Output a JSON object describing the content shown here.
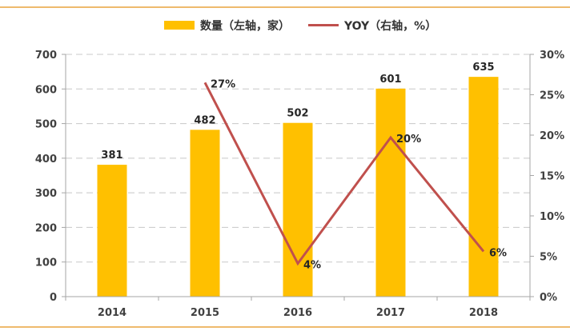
{
  "chart_data": {
    "type": "bar",
    "categories": [
      "2014",
      "2015",
      "2016",
      "2017",
      "2018"
    ],
    "series": [
      {
        "name": "数量（左轴，家）",
        "type": "bar",
        "axis": "left",
        "values": [
          381,
          482,
          502,
          601,
          635
        ],
        "labels": [
          "381",
          "482",
          "502",
          "601",
          "635"
        ],
        "color": "#FFC000"
      },
      {
        "name": "YOY（右轴，%）",
        "type": "line",
        "axis": "right",
        "values": [
          null,
          26.5,
          4.1,
          19.7,
          5.6
        ],
        "labels": [
          "",
          "27%",
          "4%",
          "20%",
          "6%"
        ],
        "color": "#C0504D"
      }
    ],
    "left_axis": {
      "min": 0,
      "max": 700,
      "step": 100,
      "ticks": [
        "0",
        "100",
        "200",
        "300",
        "400",
        "500",
        "600",
        "700"
      ]
    },
    "right_axis": {
      "min": 0,
      "max": 30,
      "step": 5,
      "ticks": [
        "0%",
        "5%",
        "10%",
        "15%",
        "20%",
        "25%",
        "30%"
      ]
    },
    "grid": true,
    "legend_position": "top",
    "colors": {
      "frame_line": "#E8A33D",
      "grid": "#C8C8C8",
      "axis": "#A6A6A6"
    }
  }
}
